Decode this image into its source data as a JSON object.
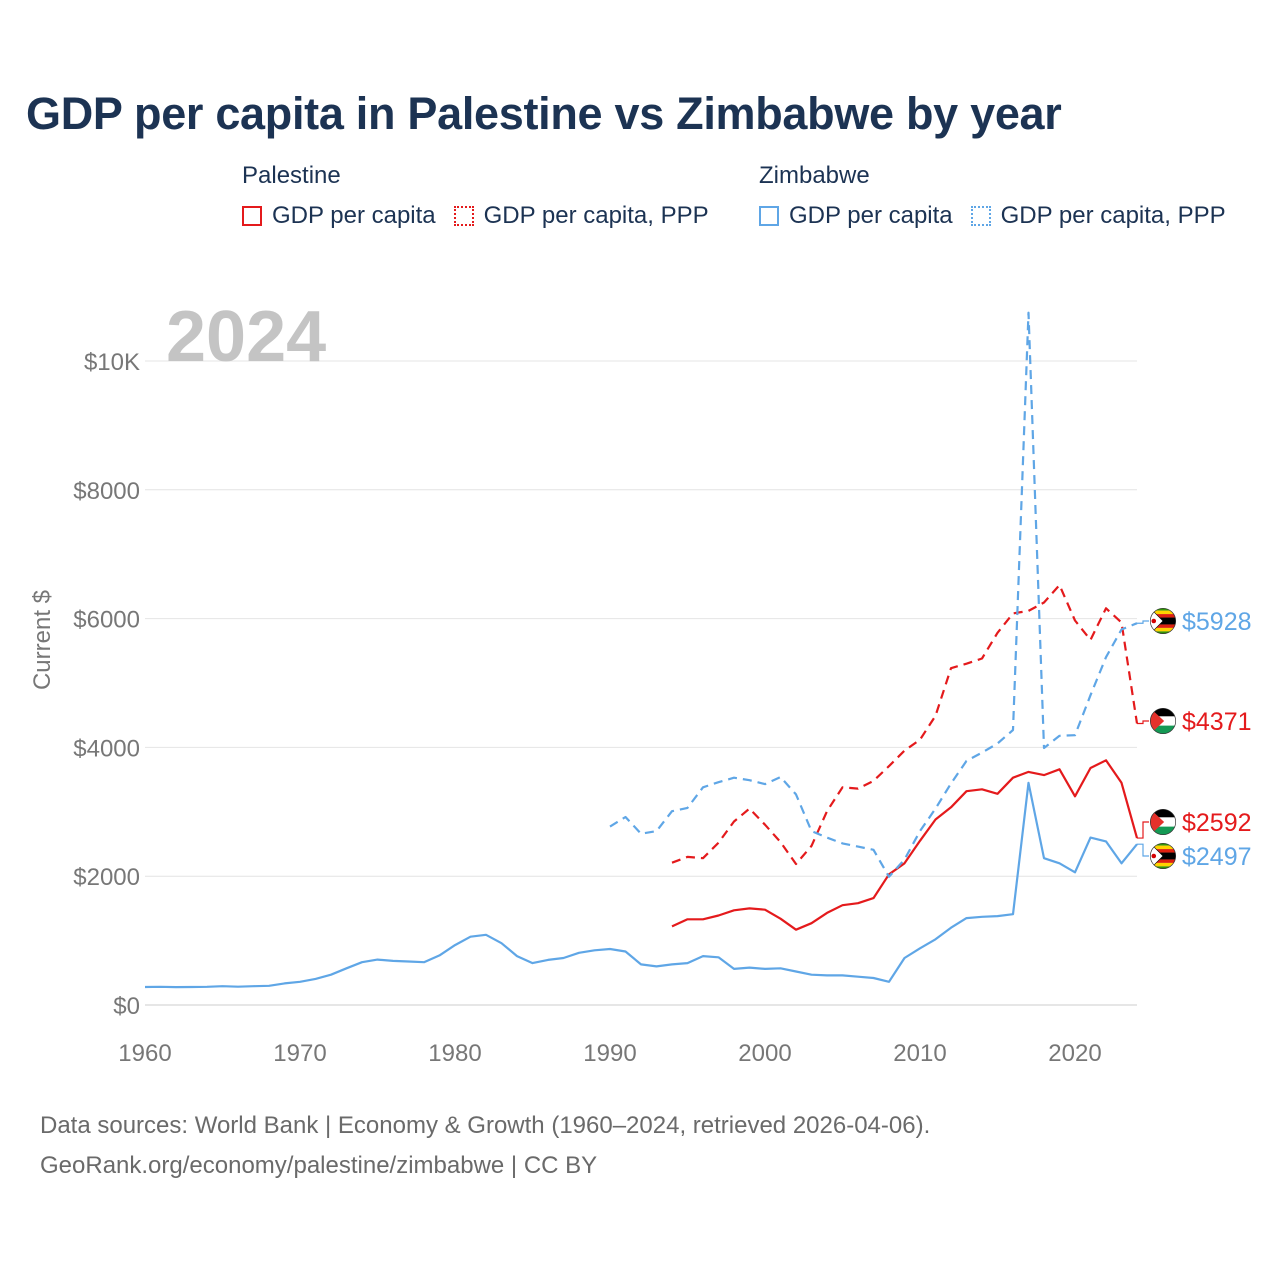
{
  "title": "GDP per capita in Palestine vs Zimbabwe by year",
  "year_label": "2024",
  "legend": {
    "groups": [
      {
        "name": "Palestine",
        "color": "#e41a1c",
        "items": [
          "GDP per capita",
          "GDP per capita, PPP"
        ]
      },
      {
        "name": "Zimbabwe",
        "color": "#5fa6e6",
        "items": [
          "GDP per capita",
          "GDP per capita, PPP"
        ]
      }
    ]
  },
  "source": {
    "line1": "Data sources: World Bank | Economy & Growth (1960–2024, retrieved 2026-04-06).",
    "line2": "GeoRank.org/economy/palestine/zimbabwe | CC BY"
  },
  "chart_data": {
    "type": "line",
    "title": "GDP per capita in Palestine vs Zimbabwe by year",
    "xlabel": "",
    "ylabel": "Current $",
    "xlim": [
      1960,
      2024
    ],
    "ylim": [
      0,
      10000
    ],
    "x_ticks": [
      1960,
      1970,
      1980,
      1990,
      2000,
      2010,
      2020
    ],
    "y_ticks": [
      0,
      2000,
      4000,
      6000,
      8000,
      10000
    ],
    "y_tick_labels": [
      "$0",
      "$2000",
      "$4000",
      "$6000",
      "$8000",
      "$10K"
    ],
    "grid": true,
    "series": [
      {
        "name": "Palestine GDP per capita",
        "country": "Palestine",
        "style": "solid",
        "color": "#e41a1c",
        "x": [
          1994,
          1995,
          1996,
          1997,
          1998,
          1999,
          2000,
          2001,
          2002,
          2003,
          2004,
          2005,
          2006,
          2007,
          2008,
          2009,
          2010,
          2011,
          2012,
          2013,
          2014,
          2015,
          2016,
          2017,
          2018,
          2019,
          2020,
          2021,
          2022,
          2023,
          2024
        ],
        "values": [
          1220,
          1330,
          1330,
          1390,
          1470,
          1500,
          1480,
          1340,
          1170,
          1270,
          1430,
          1550,
          1580,
          1660,
          2030,
          2200,
          2550,
          2880,
          3070,
          3320,
          3350,
          3280,
          3530,
          3620,
          3570,
          3660,
          3240,
          3680,
          3800,
          3450,
          2592
        ],
        "end_label": "$2592"
      },
      {
        "name": "Palestine GDP per capita, PPP",
        "country": "Palestine",
        "style": "dashed",
        "color": "#e41a1c",
        "x": [
          1994,
          1995,
          1996,
          1997,
          1998,
          1999,
          2000,
          2001,
          2002,
          2003,
          2004,
          2005,
          2006,
          2007,
          2008,
          2009,
          2010,
          2011,
          2012,
          2013,
          2014,
          2015,
          2016,
          2017,
          2018,
          2019,
          2020,
          2021,
          2022,
          2023,
          2024
        ],
        "values": [
          2210,
          2300,
          2280,
          2520,
          2850,
          3050,
          2800,
          2530,
          2190,
          2470,
          3010,
          3380,
          3360,
          3480,
          3710,
          3950,
          4120,
          4490,
          5230,
          5300,
          5380,
          5780,
          6080,
          6120,
          6250,
          6520,
          5970,
          5670,
          6160,
          5940,
          4371
        ],
        "end_label": "$4371"
      },
      {
        "name": "Zimbabwe GDP per capita",
        "country": "Zimbabwe",
        "style": "solid",
        "color": "#5fa6e6",
        "x": [
          1960,
          1961,
          1962,
          1963,
          1964,
          1965,
          1966,
          1967,
          1968,
          1969,
          1970,
          1971,
          1972,
          1973,
          1974,
          1975,
          1976,
          1977,
          1978,
          1979,
          1980,
          1981,
          1982,
          1983,
          1984,
          1985,
          1986,
          1987,
          1988,
          1989,
          1990,
          1991,
          1992,
          1993,
          1994,
          1995,
          1996,
          1997,
          1998,
          1999,
          2000,
          2001,
          2002,
          2003,
          2004,
          2005,
          2006,
          2007,
          2008,
          2009,
          2010,
          2011,
          2012,
          2013,
          2014,
          2015,
          2016,
          2017,
          2018,
          2019,
          2020,
          2021,
          2022,
          2023,
          2024
        ],
        "values": [
          280,
          282,
          278,
          280,
          282,
          292,
          284,
          292,
          298,
          336,
          360,
          405,
          470,
          570,
          665,
          705,
          685,
          675,
          665,
          770,
          930,
          1060,
          1090,
          960,
          760,
          650,
          700,
          730,
          810,
          850,
          870,
          830,
          630,
          600,
          630,
          650,
          760,
          740,
          560,
          580,
          560,
          570,
          520,
          470,
          460,
          460,
          440,
          420,
          360,
          730,
          880,
          1020,
          1200,
          1350,
          1370,
          1380,
          1410,
          3450,
          2280,
          2200,
          2060,
          2600,
          2540,
          2200,
          2497
        ],
        "end_label": "$2497"
      },
      {
        "name": "Zimbabwe GDP per capita, PPP",
        "country": "Zimbabwe",
        "style": "dashed",
        "color": "#5fa6e6",
        "x": [
          1990,
          1991,
          1992,
          1993,
          1994,
          1995,
          1996,
          1997,
          1998,
          1999,
          2000,
          2001,
          2002,
          2003,
          2004,
          2005,
          2006,
          2007,
          2008,
          2009,
          2010,
          2011,
          2012,
          2013,
          2014,
          2015,
          2016,
          2017,
          2018,
          2019,
          2020,
          2021,
          2022,
          2023,
          2024
        ],
        "values": [
          2770,
          2920,
          2660,
          2700,
          3010,
          3060,
          3380,
          3460,
          3530,
          3490,
          3430,
          3540,
          3270,
          2700,
          2600,
          2510,
          2460,
          2410,
          1990,
          2260,
          2700,
          3050,
          3440,
          3790,
          3920,
          4060,
          4270,
          10750,
          3990,
          4180,
          4190,
          4810,
          5400,
          5830,
          5928
        ],
        "end_label": "$5928"
      }
    ]
  }
}
